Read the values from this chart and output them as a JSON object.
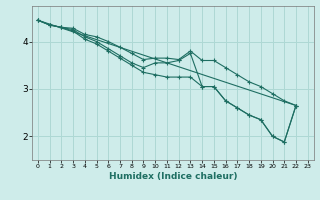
{
  "xlabel": "Humidex (Indice chaleur)",
  "ylabel": "",
  "bg_color": "#ceecea",
  "grid_color": "#aed8d4",
  "line_color": "#1e6e62",
  "xlim": [
    -0.5,
    23.5
  ],
  "ylim": [
    1.5,
    4.75
  ],
  "xticks": [
    0,
    1,
    2,
    3,
    4,
    5,
    6,
    7,
    8,
    9,
    10,
    11,
    12,
    13,
    14,
    15,
    16,
    17,
    18,
    19,
    20,
    21,
    22,
    23
  ],
  "yticks": [
    2,
    3,
    4
  ],
  "line_main": [
    [
      0,
      4.45
    ],
    [
      1,
      4.35
    ],
    [
      2,
      4.3
    ],
    [
      3,
      4.25
    ],
    [
      4,
      4.1
    ],
    [
      5,
      4.0
    ],
    [
      6,
      3.85
    ],
    [
      7,
      3.7
    ],
    [
      8,
      3.55
    ],
    [
      9,
      3.45
    ],
    [
      10,
      3.55
    ],
    [
      11,
      3.55
    ],
    [
      12,
      3.6
    ],
    [
      13,
      3.75
    ],
    [
      14,
      3.05
    ],
    [
      15,
      3.05
    ],
    [
      16,
      2.75
    ],
    [
      17,
      2.6
    ],
    [
      18,
      2.45
    ],
    [
      19,
      2.35
    ],
    [
      20,
      2.0
    ],
    [
      21,
      1.88
    ],
    [
      22,
      2.65
    ]
  ],
  "line_upper": [
    [
      0,
      4.45
    ],
    [
      1,
      4.35
    ],
    [
      2,
      4.3
    ],
    [
      3,
      4.28
    ],
    [
      4,
      4.15
    ],
    [
      5,
      4.1
    ],
    [
      6,
      4.0
    ],
    [
      7,
      3.88
    ],
    [
      8,
      3.75
    ],
    [
      9,
      3.62
    ],
    [
      10,
      3.65
    ],
    [
      11,
      3.65
    ],
    [
      12,
      3.62
    ],
    [
      13,
      3.8
    ],
    [
      14,
      3.6
    ],
    [
      15,
      3.6
    ],
    [
      16,
      3.45
    ],
    [
      17,
      3.3
    ],
    [
      18,
      3.15
    ],
    [
      19,
      3.05
    ],
    [
      20,
      2.9
    ],
    [
      21,
      2.75
    ],
    [
      22,
      2.65
    ]
  ],
  "line_lower": [
    [
      0,
      4.45
    ],
    [
      1,
      4.35
    ],
    [
      2,
      4.3
    ],
    [
      3,
      4.22
    ],
    [
      4,
      4.05
    ],
    [
      5,
      3.95
    ],
    [
      6,
      3.8
    ],
    [
      7,
      3.65
    ],
    [
      8,
      3.5
    ],
    [
      9,
      3.35
    ],
    [
      10,
      3.3
    ],
    [
      11,
      3.25
    ],
    [
      12,
      3.25
    ],
    [
      13,
      3.25
    ],
    [
      14,
      3.05
    ],
    [
      15,
      3.05
    ],
    [
      16,
      2.75
    ],
    [
      17,
      2.6
    ],
    [
      18,
      2.45
    ],
    [
      19,
      2.35
    ],
    [
      20,
      2.0
    ],
    [
      21,
      1.88
    ],
    [
      22,
      2.65
    ]
  ],
  "line_trend": [
    [
      0,
      4.45
    ],
    [
      22,
      2.65
    ]
  ]
}
